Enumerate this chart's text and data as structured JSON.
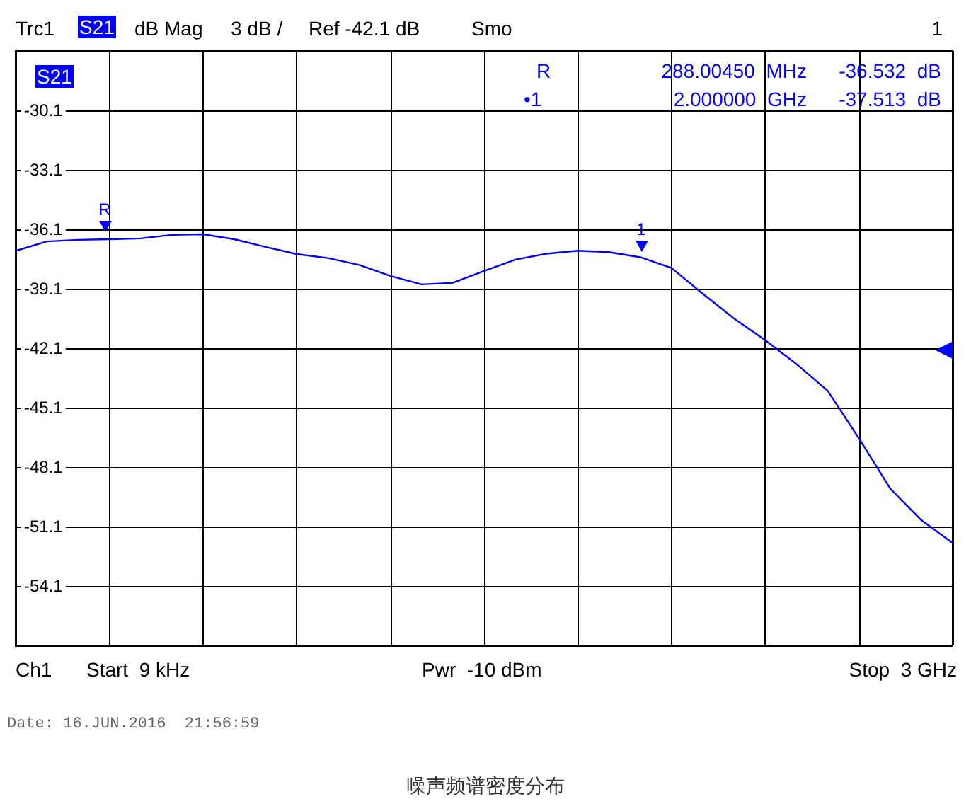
{
  "chart_data": {
    "type": "line",
    "title": "噪声频谱密度分布",
    "categories": [
      null,
      null,
      null,
      null,
      null,
      null,
      null,
      null,
      null,
      null,
      null,
      null,
      null,
      null,
      null,
      null,
      null,
      null,
      null,
      null,
      null,
      null,
      null,
      null,
      null,
      null,
      null,
      null,
      null,
      null,
      null
    ],
    "series": [
      {
        "color": "#0000ff",
        "values": [
          -37.19,
          -36.71,
          -36.63,
          -36.6,
          -36.56,
          -36.38,
          -36.35,
          -36.6,
          -36.99,
          -37.35,
          -37.55,
          -37.9,
          -38.45,
          -38.88,
          -38.8,
          -38.2,
          -37.63,
          -37.33,
          -37.18,
          -37.25,
          -37.51,
          -38.05,
          -39.35,
          -40.6,
          -41.7,
          -42.9,
          -44.25,
          -46.65,
          -49.18,
          -50.78,
          -51.93
        ]
      }
    ],
    "ylim": [
      -57.1,
      -27.1
    ],
    "yticks": [
      -30.1,
      -33.1,
      -36.1,
      -39.1,
      -42.1,
      -45.1,
      -48.1,
      -51.1,
      -54.1
    ],
    "tick_labels": "y",
    "grid": true,
    "marker": "none",
    "line_style": "solid",
    "annotations": [
      "Trc1",
      "S21",
      "dB Mag",
      "3 dB /",
      "Ref -42.1 dB",
      "Smo",
      "1",
      "S21",
      "R",
      "288.00450  MHz",
      "-36.532  dB",
      "•1",
      "2.000000  GHz",
      "-37.513  dB",
      "Ch1",
      "Start  9 kHz",
      "Pwr  -10 dBm",
      "Stop  3 GHz",
      "Date: 16.JUN.2016  21:56:59",
      "R",
      "1",
      "◀"
    ]
  }
}
